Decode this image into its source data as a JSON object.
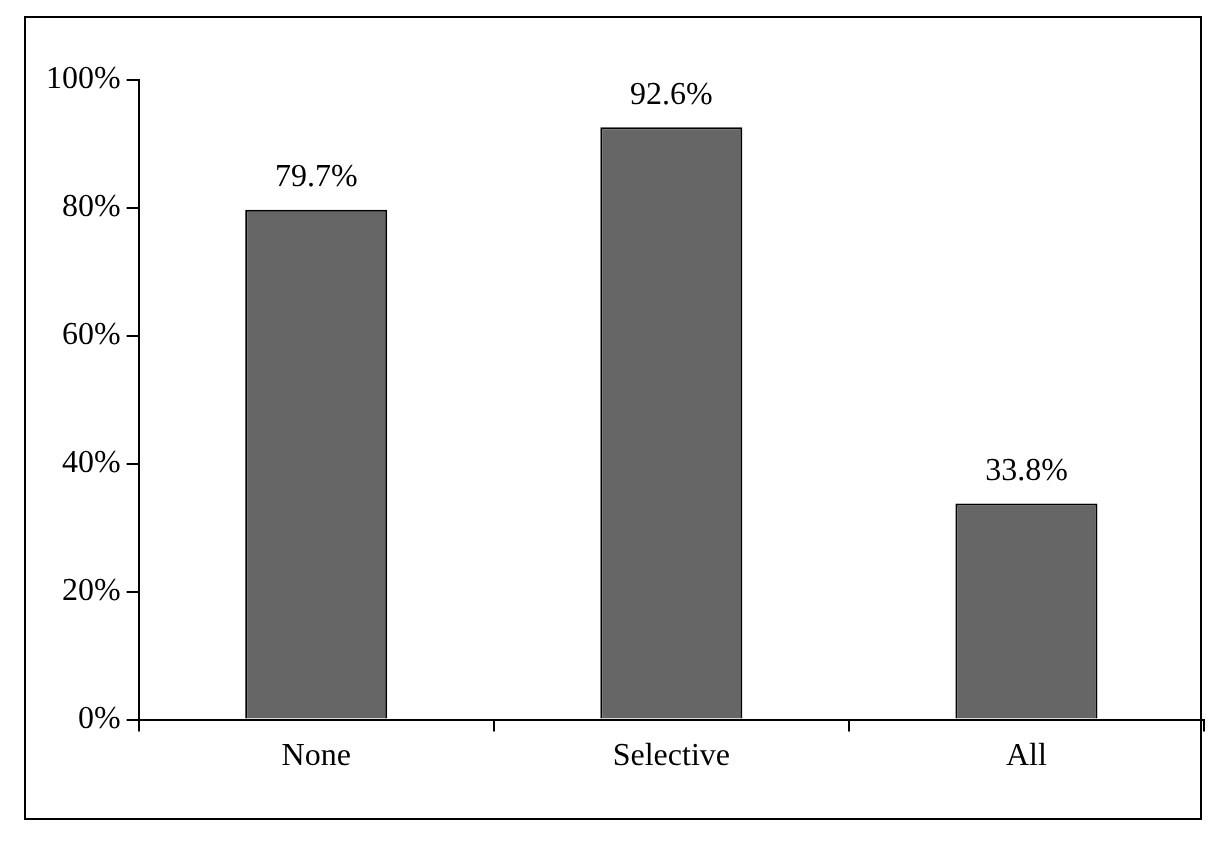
{
  "chart_data": {
    "type": "bar",
    "categories": [
      "None",
      "Selective",
      "All"
    ],
    "values": [
      79.7,
      92.6,
      33.8
    ],
    "value_labels": [
      "79.7%",
      "92.6%",
      "33.8%"
    ],
    "color": "#666666",
    "ylim": [
      0,
      100
    ],
    "yticks": [
      {
        "value": 0,
        "label": "0%"
      },
      {
        "value": 20,
        "label": "20%"
      },
      {
        "value": 40,
        "label": "40%"
      },
      {
        "value": 60,
        "label": "60%"
      },
      {
        "value": 80,
        "label": "80%"
      },
      {
        "value": 100,
        "label": "100%"
      }
    ],
    "grid": false,
    "legend": false
  }
}
